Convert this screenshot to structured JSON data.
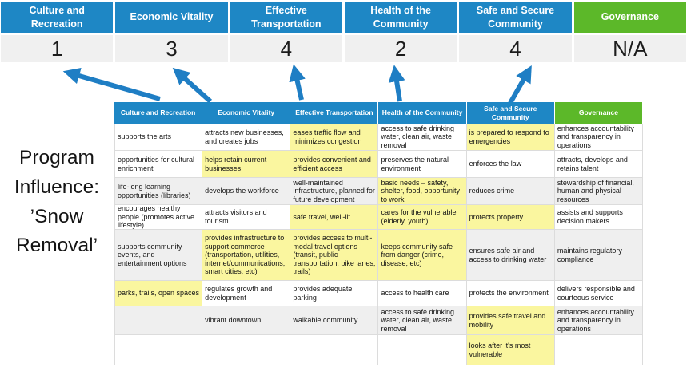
{
  "title": {
    "full_text": "Program Influence: ’Snow Removal’",
    "lines": [
      "Program",
      "Influence:",
      "’Snow",
      "Removal’"
    ]
  },
  "scoreboard": {
    "columns": [
      {
        "label": "Culture and Recreation",
        "score": "1",
        "color": "blue"
      },
      {
        "label": "Economic Vitality",
        "score": "3",
        "color": "blue"
      },
      {
        "label": "Effective Transportation",
        "score": "4",
        "color": "blue"
      },
      {
        "label": "Health of the Community",
        "score": "2",
        "color": "blue"
      },
      {
        "label": "Safe and Secure Community",
        "score": "4",
        "color": "blue"
      },
      {
        "label": "Governance",
        "score": "N/A",
        "color": "green"
      }
    ]
  },
  "arrows": {
    "count": 5,
    "direction": "up",
    "color": "#1F7EC4"
  },
  "matrix": {
    "headers": [
      {
        "label": "Culture and Recreation",
        "color": "blue"
      },
      {
        "label": "Economic Vitality",
        "color": "blue"
      },
      {
        "label": "Effective Transportation",
        "color": "blue"
      },
      {
        "label": "Health of the Community",
        "color": "blue"
      },
      {
        "label": "Safe and Secure Community",
        "color": "blue"
      },
      {
        "label": "Governance",
        "color": "green"
      }
    ],
    "rows": [
      {
        "band": "white",
        "cells": [
          {
            "text": "supports the arts",
            "highlight": false
          },
          {
            "text": "attracts new businesses, and creates jobs",
            "highlight": false
          },
          {
            "text": "eases traffic flow and minimizes congestion",
            "highlight": true
          },
          {
            "text": "access to safe drinking water, clean air, waste removal",
            "highlight": false
          },
          {
            "text": "is prepared to respond to emergencies",
            "highlight": true
          },
          {
            "text": "enhances accountability and transparency in operations",
            "highlight": false
          }
        ]
      },
      {
        "band": "white",
        "cells": [
          {
            "text": "opportunities for cultural enrichment",
            "highlight": false
          },
          {
            "text": "helps retain current businesses",
            "highlight": true
          },
          {
            "text": "provides convenient and efficient access",
            "highlight": true
          },
          {
            "text": "preserves the natural environment",
            "highlight": false
          },
          {
            "text": "enforces the law",
            "highlight": false
          },
          {
            "text": "attracts, develops and retains talent",
            "highlight": false
          }
        ]
      },
      {
        "band": "gray",
        "cells": [
          {
            "text": "life-long learning opportunities (libraries)",
            "highlight": false
          },
          {
            "text": "develops the workforce",
            "highlight": false
          },
          {
            "text": "well-maintained infrastructure, planned for future development",
            "highlight": false
          },
          {
            "text": "basic needs – safety, shelter, food, opportunity to work",
            "highlight": true
          },
          {
            "text": "reduces crime",
            "highlight": false
          },
          {
            "text": "stewardship of financial, human and physical resources",
            "highlight": false
          }
        ]
      },
      {
        "band": "white",
        "cells": [
          {
            "text": "encourages healthy people (promotes active lifestyle)",
            "highlight": false
          },
          {
            "text": "attracts visitors and tourism",
            "highlight": false
          },
          {
            "text": "safe travel, well-lit",
            "highlight": true
          },
          {
            "text": "cares for the vulnerable (elderly, youth)",
            "highlight": true
          },
          {
            "text": "protects property",
            "highlight": true
          },
          {
            "text": "assists and supports decision makers",
            "highlight": false
          }
        ]
      },
      {
        "band": "gray",
        "cells": [
          {
            "text": "supports community events, and entertainment options",
            "highlight": false
          },
          {
            "text": "provides infrastructure to support commerce (transportation, utilities, internet/communications, smart cities, etc)",
            "highlight": true
          },
          {
            "text": "provides access to multi-modal travel options (transit, public transportation, bike lanes, trails)",
            "highlight": true
          },
          {
            "text": "keeps community safe from danger (crime, disease, etc)",
            "highlight": true
          },
          {
            "text": "ensures safe air and access to drinking water",
            "highlight": false
          },
          {
            "text": "maintains regulatory compliance",
            "highlight": false
          }
        ]
      },
      {
        "band": "white",
        "cells": [
          {
            "text": "parks, trails, open spaces",
            "highlight": true
          },
          {
            "text": "regulates growth and development",
            "highlight": false
          },
          {
            "text": "provides adequate parking",
            "highlight": false
          },
          {
            "text": "access to health care",
            "highlight": false
          },
          {
            "text": "protects the environment",
            "highlight": false
          },
          {
            "text": "delivers responsible and courteous service",
            "highlight": false
          }
        ]
      },
      {
        "band": "gray",
        "cells": [
          {
            "text": "",
            "highlight": false
          },
          {
            "text": "vibrant downtown",
            "highlight": false
          },
          {
            "text": "walkable community",
            "highlight": false
          },
          {
            "text": "access to safe drinking water, clean air, waste removal",
            "highlight": false
          },
          {
            "text": "provides safe travel and mobility",
            "highlight": true
          },
          {
            "text": "enhances accountability and transparency in operations",
            "highlight": false
          }
        ]
      },
      {
        "band": "white",
        "cells": [
          {
            "text": "",
            "highlight": false
          },
          {
            "text": "",
            "highlight": false
          },
          {
            "text": "",
            "highlight": false
          },
          {
            "text": "",
            "highlight": false
          },
          {
            "text": "looks after it's most vulnerable",
            "highlight": true
          },
          {
            "text": "",
            "highlight": false
          }
        ]
      }
    ]
  },
  "colors": {
    "header_blue": "#1E87C5",
    "header_green": "#5CB829",
    "highlight_yellow": "#FAF69F",
    "band_gray": "#EFEFEF",
    "score_bg": "#F0F0F0",
    "arrow_blue": "#1F7EC4"
  }
}
